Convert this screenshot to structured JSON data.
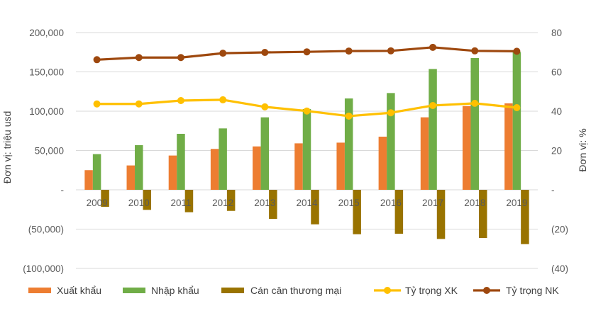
{
  "chart_data": {
    "type": "bar+line",
    "title": "",
    "categories": [
      "2009",
      "2010",
      "2011",
      "2012",
      "2013",
      "2014",
      "2015",
      "2016",
      "2017",
      "2018",
      "2019"
    ],
    "series": [
      {
        "name": "Xuất khẩu",
        "type": "bar",
        "axis": "left",
        "color": "#ED7D31",
        "values": [
          25000,
          31000,
          43600,
          52000,
          55200,
          59100,
          60000,
          67600,
          92200,
          106600,
          110000
        ]
      },
      {
        "name": "Nhập khẩu",
        "type": "bar",
        "axis": "left",
        "color": "#70AD47",
        "values": [
          45400,
          56800,
          71200,
          78100,
          92200,
          102700,
          116200,
          123100,
          153700,
          167600,
          175200
        ]
      },
      {
        "name": "Cán cân thương mại",
        "type": "bar",
        "axis": "left",
        "color": "#997300",
        "values": [
          -21600,
          -25500,
          -28500,
          -26800,
          -37000,
          -43900,
          -56500,
          -55900,
          -62500,
          -61300,
          -69100
        ]
      },
      {
        "name": "Tỷ trọng XK",
        "type": "line",
        "axis": "right",
        "color": "#FFC000",
        "values": [
          43.7,
          43.7,
          45.4,
          45.8,
          42.2,
          40.1,
          37.5,
          39.2,
          42.9,
          44.0,
          41.8
        ]
      },
      {
        "name": "Tỷ trọng NK",
        "type": "line",
        "axis": "right",
        "color": "#9E480E",
        "values": [
          66.2,
          67.3,
          67.3,
          69.5,
          69.9,
          70.2,
          70.6,
          70.7,
          72.5,
          70.7,
          70.5
        ]
      }
    ],
    "xlabel": "",
    "ylabel": "Đơn vị: triệu usd",
    "y2label": "Đơn vị: %",
    "ylim": [
      -100000,
      200000
    ],
    "y2lim": [
      -40,
      80
    ],
    "yticks": [
      "200,000",
      "150,000",
      "100,000",
      "50,000",
      "-",
      "(50,000)",
      "(100,000)"
    ],
    "y2ticks": [
      "80",
      "60",
      "40",
      "20",
      "-",
      "(20)",
      "(40)"
    ],
    "grid": true,
    "legend_position": "bottom"
  },
  "legend": [
    {
      "label": "Xuất khẩu",
      "kind": "swatch",
      "color": "#ED7D31"
    },
    {
      "label": "Nhập khẩu",
      "kind": "swatch",
      "color": "#70AD47"
    },
    {
      "label": "Cán cân thương mại",
      "kind": "swatch",
      "color": "#997300"
    },
    {
      "label": "Tỷ trọng XK",
      "kind": "line",
      "color": "#FFC000"
    },
    {
      "label": "Tỷ trọng NK",
      "kind": "line",
      "color": "#9E480E"
    }
  ]
}
